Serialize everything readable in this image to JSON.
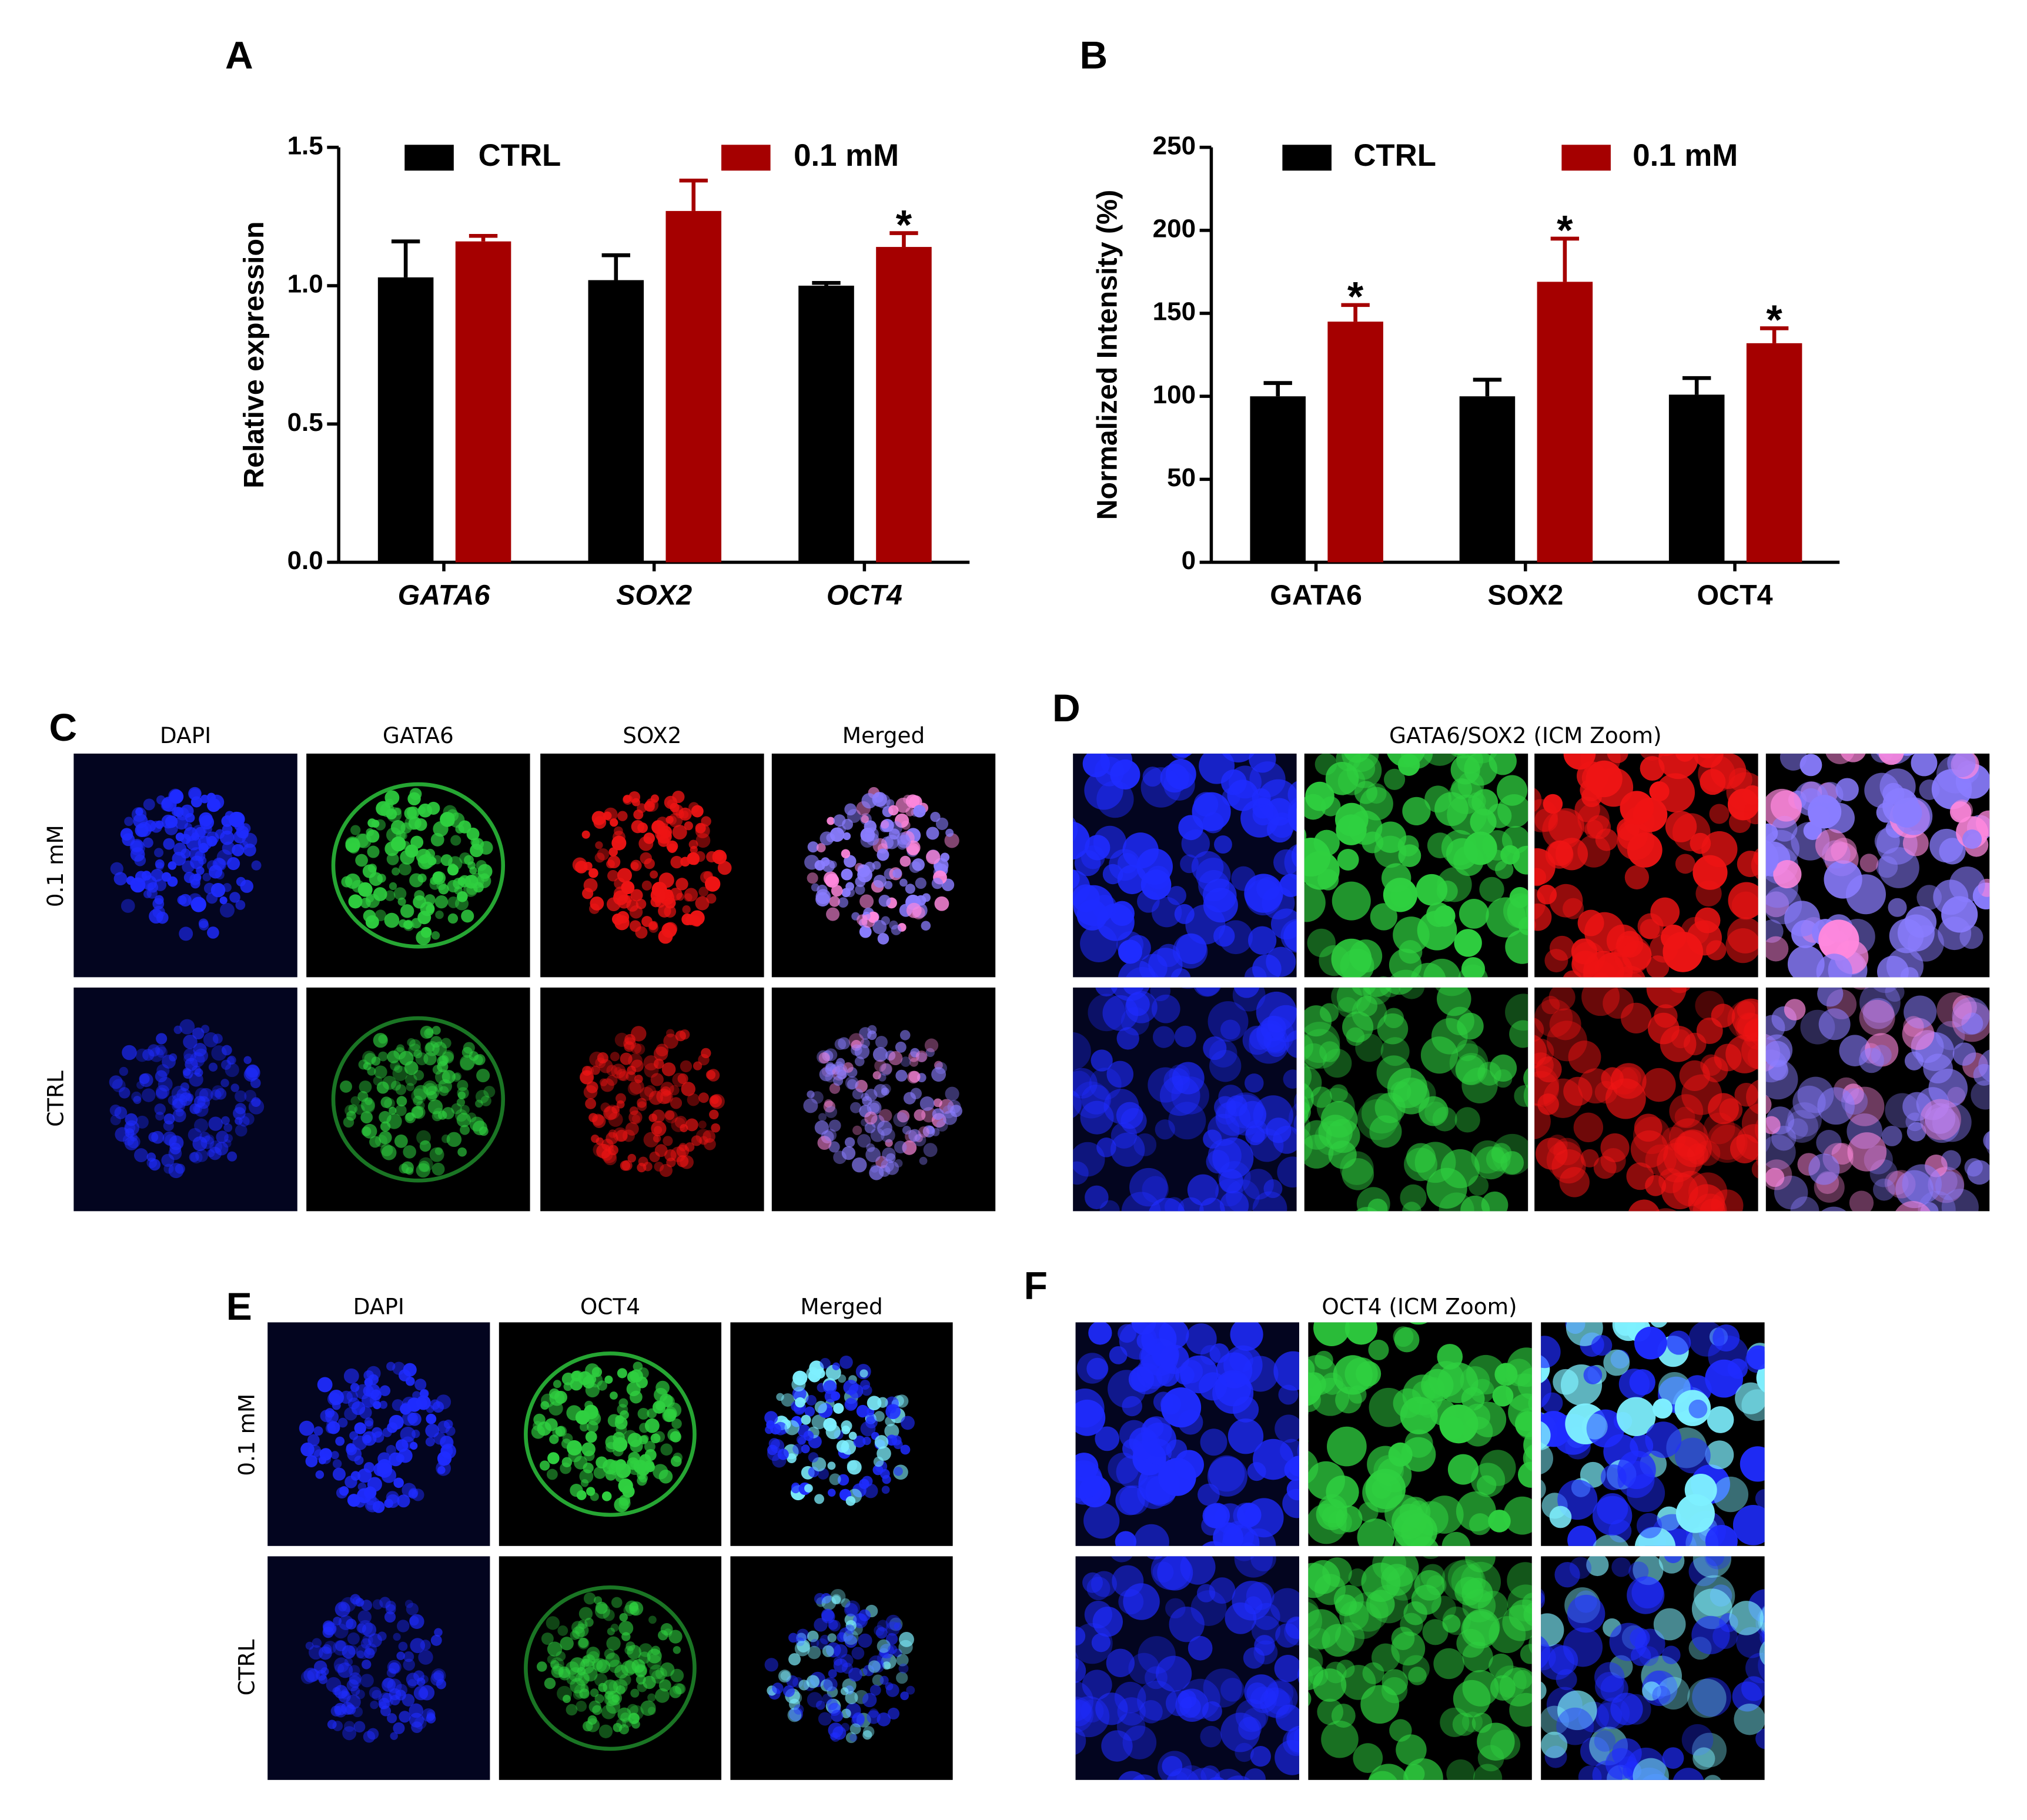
{
  "chart_data": [
    {
      "type": "bar",
      "panel_label": "A",
      "y_label": "Relative expression",
      "categories": [
        "GATA6",
        "SOX2",
        "OCT4"
      ],
      "italic_categories": true,
      "series": [
        {
          "name": "CTRL",
          "color": "#000000",
          "values": [
            1.03,
            1.02,
            1.0
          ],
          "errors": [
            0.13,
            0.09,
            0.01
          ],
          "markers": [
            null,
            null,
            null
          ]
        },
        {
          "name": "0.1 mM",
          "color": "#a50000",
          "values": [
            1.16,
            1.27,
            1.14
          ],
          "errors": [
            0.02,
            0.11,
            0.05
          ],
          "markers": [
            null,
            null,
            "*"
          ]
        }
      ],
      "ylim": [
        0,
        1.5
      ],
      "yticks": [
        {
          "value": 0,
          "label": "0.0"
        },
        0.5,
        {
          "value": 1,
          "label": "1.0"
        },
        1.5
      ]
    },
    {
      "type": "bar",
      "panel_label": "B",
      "y_label": "Normalized Intensity (%)",
      "categories": [
        "GATA6",
        "SOX2",
        "OCT4"
      ],
      "italic_categories": false,
      "series": [
        {
          "name": "CTRL",
          "color": "#000000",
          "values": [
            100,
            100,
            101
          ],
          "errors": [
            8,
            10,
            10
          ],
          "markers": [
            null,
            null,
            null
          ]
        },
        {
          "name": "0.1 mM",
          "color": "#a50000",
          "values": [
            145,
            169,
            132
          ],
          "errors": [
            10,
            26,
            9
          ],
          "markers": [
            "*",
            "*",
            "*"
          ]
        }
      ],
      "ylim": [
        0,
        250
      ],
      "yticks": [
        0,
        50,
        100,
        150,
        200,
        250
      ]
    }
  ],
  "figure_panels": {
    "C": {
      "label": "C",
      "columns": [
        "DAPI",
        "GATA6",
        "SOX2",
        "Merged"
      ],
      "rows": [
        "0.1 mM",
        "CTRL"
      ]
    },
    "D": {
      "label": "D",
      "title": "GATA6/SOX2 (ICM Zoom)"
    },
    "E": {
      "label": "E",
      "columns": [
        "DAPI",
        "OCT4",
        "Merged"
      ],
      "rows": [
        "0.1 mM",
        "CTRL"
      ]
    },
    "F": {
      "label": "F",
      "title": "OCT4 (ICM Zoom)"
    }
  }
}
